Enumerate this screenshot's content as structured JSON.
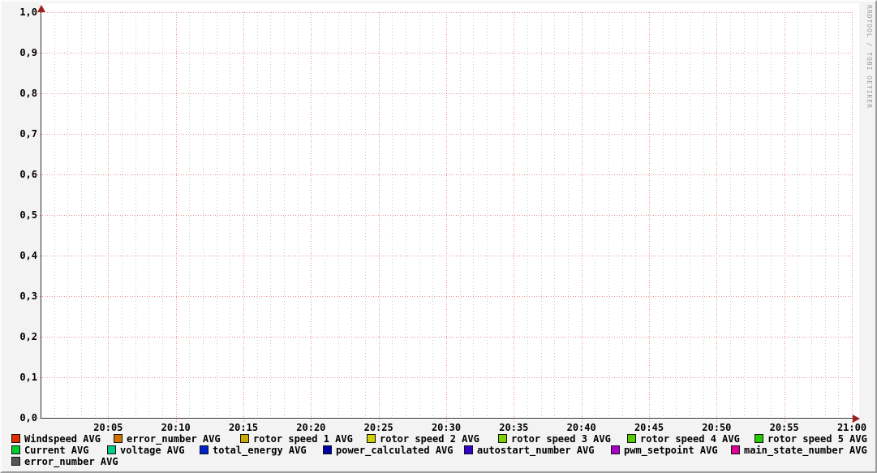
{
  "watermark": "RRDTOOL / TOBI OETIKER",
  "chart_data": {
    "type": "line",
    "title": "",
    "x_ticks": [
      "20:05",
      "20:10",
      "20:15",
      "20:20",
      "20:25",
      "20:30",
      "20:35",
      "20:40",
      "20:45",
      "20:50",
      "20:55",
      "21:00"
    ],
    "x_range": [
      "20:00",
      "21:00"
    ],
    "y_ticks": [
      "1,0",
      "0,9",
      "0,8",
      "0,7",
      "0,6",
      "0,5",
      "0,4",
      "0,3",
      "0,2",
      "0,1",
      "0,0"
    ],
    "ylim": [
      0.0,
      1.0
    ],
    "grid": "on",
    "legend_position": "bottom",
    "colors": {
      "major_grid": "#e89090",
      "minor_grid": "#c9c9c9",
      "axis": "#333333",
      "arrow": "#9e2020",
      "canvas": "#ffffff",
      "background": "#f3f3f3"
    },
    "series": [
      {
        "name": "Windspeed AVG",
        "color": "#e03000",
        "values": []
      },
      {
        "name": "error_number AVG",
        "color": "#cf7300",
        "values": []
      },
      {
        "name": "rotor speed 1 AVG",
        "color": "#ccaa00",
        "values": []
      },
      {
        "name": "rotor speed 2 AVG",
        "color": "#cfd000",
        "values": []
      },
      {
        "name": "rotor speed 3 AVG",
        "color": "#7fd000",
        "values": []
      },
      {
        "name": "rotor speed 4 AVG",
        "color": "#55cc00",
        "values": []
      },
      {
        "name": "rotor speed 5 AVG",
        "color": "#27cc00",
        "values": []
      },
      {
        "name": "Current AVG",
        "color": "#00cc2c",
        "values": []
      },
      {
        "name": "voltage AVG",
        "color": "#00cc85",
        "values": []
      },
      {
        "name": "total_energy AVG",
        "color": "#0022cc",
        "values": []
      },
      {
        "name": "power_calculated AVG",
        "color": "#0000aa",
        "values": []
      },
      {
        "name": "autostart_number AVG",
        "color": "#3300cc",
        "values": []
      },
      {
        "name": "pwm_setpoint AVG",
        "color": "#aa00cc",
        "values": []
      },
      {
        "name": "main_state_number AVG",
        "color": "#dd0099",
        "values": []
      },
      {
        "name": "error_number AVG",
        "color": "#555555",
        "values": []
      }
    ]
  }
}
